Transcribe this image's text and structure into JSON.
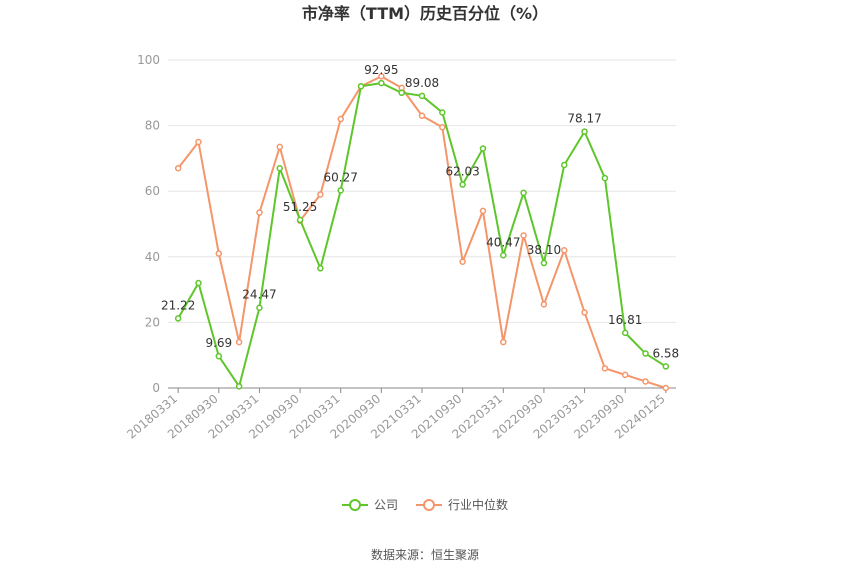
{
  "chart_data": {
    "type": "line",
    "title": "市净率（TTM）历史百分位（%）",
    "x": [
      "20180331",
      "20180630",
      "20180930",
      "20181231",
      "20190331",
      "20190630",
      "20190930",
      "20191231",
      "20200331",
      "20200630",
      "20200930",
      "20201231",
      "20210331",
      "20210630",
      "20210930",
      "20211231",
      "20220331",
      "20220630",
      "20220930",
      "20221231",
      "20230331",
      "20230630",
      "20230930",
      "20231231",
      "20240125"
    ],
    "x_tick_labels": [
      "20180331",
      "20180930",
      "20190331",
      "20190930",
      "20200331",
      "20200930",
      "20210331",
      "20210930",
      "20220331",
      "20220930",
      "20230331",
      "20230930",
      "20240125"
    ],
    "series": [
      {
        "name": "公司",
        "color": "#5ec62a",
        "values": [
          21.22,
          32,
          9.69,
          0.5,
          24.47,
          67,
          51.25,
          36.5,
          60.27,
          92,
          92.95,
          90,
          89.08,
          84,
          62.03,
          73,
          40.47,
          59.5,
          38.1,
          68,
          78.17,
          64,
          16.81,
          10.5,
          6.58
        ]
      },
      {
        "name": "行业中位数",
        "color": "#f5956a",
        "values": [
          67,
          75,
          41,
          14,
          53.5,
          73.5,
          51,
          59,
          82,
          92,
          95,
          91.5,
          83,
          79.5,
          38.5,
          54,
          14,
          46.5,
          25.5,
          42,
          23,
          6,
          4,
          2,
          0
        ]
      }
    ],
    "data_labels": [
      {
        "index": 0,
        "text": "21.22"
      },
      {
        "index": 2,
        "text": "9.69"
      },
      {
        "index": 4,
        "text": "24.47"
      },
      {
        "index": 6,
        "text": "51.25"
      },
      {
        "index": 8,
        "text": "60.27"
      },
      {
        "index": 10,
        "text": "92.95"
      },
      {
        "index": 12,
        "text": "89.08"
      },
      {
        "index": 14,
        "text": "62.03"
      },
      {
        "index": 16,
        "text": "40.47"
      },
      {
        "index": 18,
        "text": "38.10"
      },
      {
        "index": 20,
        "text": "78.17"
      },
      {
        "index": 22,
        "text": "16.81"
      },
      {
        "index": 24,
        "text": "6.58"
      }
    ],
    "ylim": [
      0,
      100
    ],
    "yticks": [
      "0",
      "20",
      "40",
      "60",
      "80",
      "100"
    ],
    "grid": true,
    "legend_position": "bottom"
  },
  "source": "数据来源：恒生聚源"
}
